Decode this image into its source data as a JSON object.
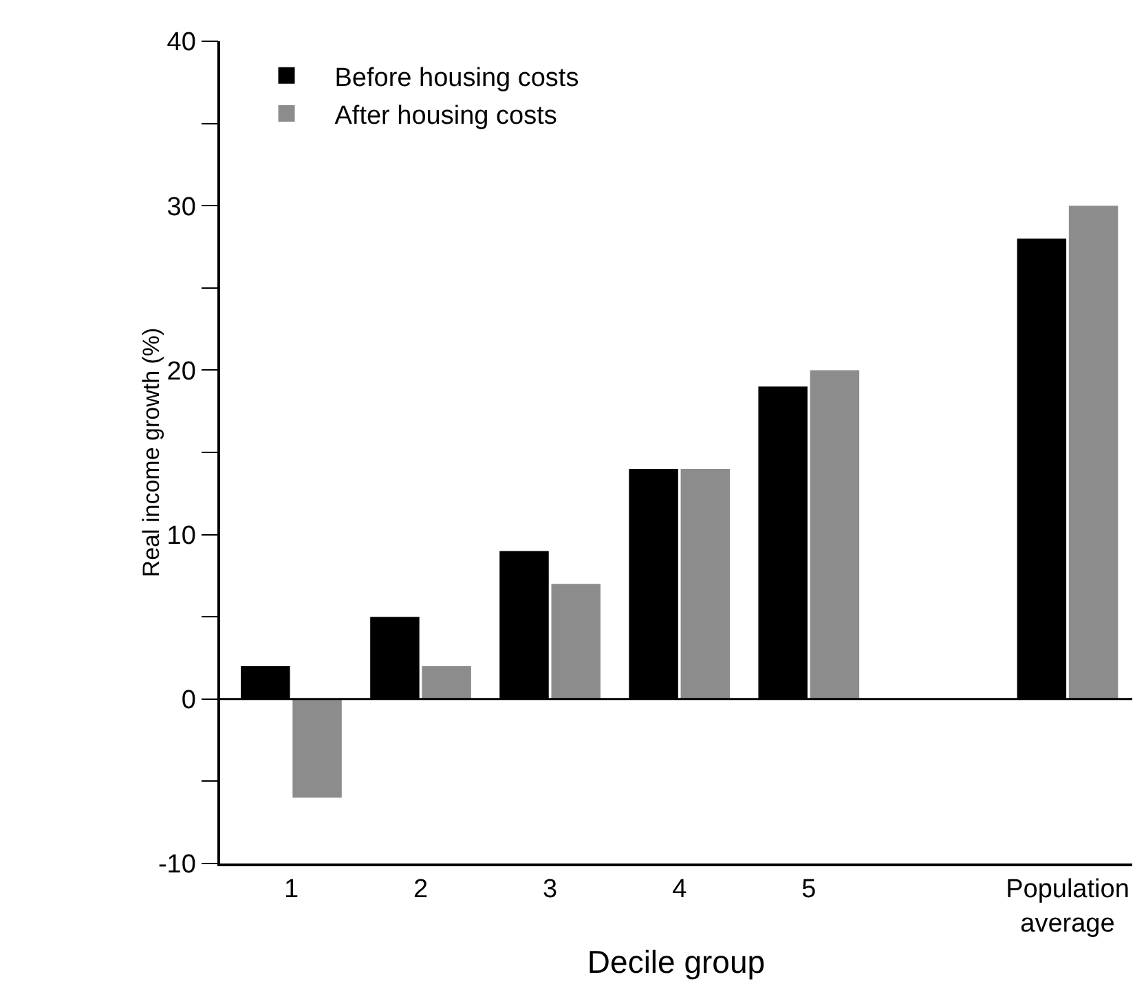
{
  "chart_data": {
    "type": "bar",
    "xlabel": "Decile group",
    "ylabel": "Real income growth (%)",
    "categories": [
      "1",
      "2",
      "3",
      "4",
      "5",
      null,
      "Population average"
    ],
    "series": [
      {
        "name": "Before housing costs",
        "color": "#000000",
        "values": [
          2,
          5,
          9,
          14,
          19,
          null,
          28
        ]
      },
      {
        "name": "After housing costs",
        "color": "#8c8c8c",
        "values": [
          -6,
          2,
          7,
          14,
          20,
          null,
          30
        ]
      }
    ],
    "ylim": [
      -10,
      40
    ],
    "yticks": [
      -10,
      {
        "value": -5,
        "label": null
      },
      0,
      {
        "value": 5,
        "label": null
      },
      10,
      {
        "value": 15,
        "label": null
      },
      20,
      {
        "value": 25,
        "label": null
      },
      30,
      {
        "value": 35,
        "label": null
      },
      40
    ],
    "ref_lines": [
      {
        "axis": "y",
        "value": 0
      }
    ],
    "grid": false,
    "legend": "top left"
  }
}
